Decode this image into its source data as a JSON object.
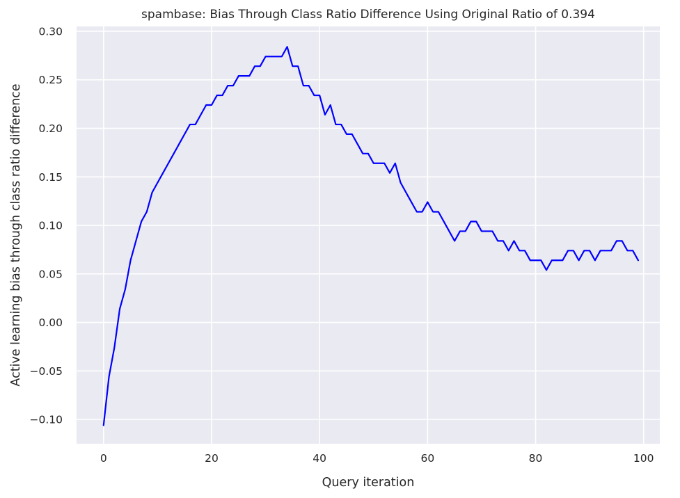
{
  "chart_data": {
    "type": "line",
    "title": "spambase: Bias Through Class Ratio Difference Using Original Ratio of 0.394",
    "xlabel": "Query iteration",
    "ylabel": "Active learning bias through class ratio difference",
    "xlim": [
      -5,
      103
    ],
    "ylim": [
      -0.125,
      0.305
    ],
    "xticks": [
      0,
      20,
      40,
      60,
      80,
      100
    ],
    "xtick_labels": [
      "0",
      "20",
      "40",
      "60",
      "80",
      "100"
    ],
    "yticks": [
      -0.1,
      -0.05,
      0.0,
      0.05,
      0.1,
      0.15,
      0.2,
      0.25,
      0.3
    ],
    "ytick_labels": [
      "−0.10",
      "−0.05",
      "0.00",
      "0.05",
      "0.10",
      "0.15",
      "0.20",
      "0.25",
      "0.30"
    ],
    "grid": true,
    "background_color": "#eaeaf2",
    "grid_color": "#ffffff",
    "series": [
      {
        "color": "#0000ff",
        "x": [
          0,
          1,
          2,
          3,
          4,
          5,
          6,
          7,
          8,
          9,
          10,
          11,
          12,
          13,
          14,
          15,
          16,
          17,
          18,
          19,
          20,
          21,
          22,
          23,
          24,
          25,
          26,
          27,
          28,
          29,
          30,
          31,
          32,
          33,
          34,
          35,
          36,
          37,
          38,
          39,
          40,
          41,
          42,
          43,
          44,
          45,
          46,
          47,
          48,
          49,
          50,
          51,
          52,
          53,
          54,
          55,
          56,
          57,
          58,
          59,
          60,
          61,
          62,
          63,
          64,
          65,
          66,
          67,
          68,
          69,
          70,
          71,
          72,
          73,
          74,
          75,
          76,
          77,
          78,
          79,
          80,
          81,
          82,
          83,
          84,
          85,
          86,
          87,
          88,
          89,
          90,
          91,
          92,
          93,
          94,
          95,
          96,
          97,
          98,
          99
        ],
        "y": [
          -0.106,
          -0.056,
          -0.026,
          0.014,
          0.034,
          0.064,
          0.084,
          0.104,
          0.114,
          0.134,
          0.144,
          0.154,
          0.164,
          0.174,
          0.184,
          0.194,
          0.204,
          0.204,
          0.214,
          0.224,
          0.224,
          0.234,
          0.234,
          0.244,
          0.244,
          0.254,
          0.254,
          0.254,
          0.264,
          0.264,
          0.274,
          0.274,
          0.274,
          0.274,
          0.284,
          0.264,
          0.264,
          0.244,
          0.244,
          0.234,
          0.234,
          0.214,
          0.224,
          0.204,
          0.204,
          0.194,
          0.194,
          0.184,
          0.174,
          0.174,
          0.164,
          0.164,
          0.164,
          0.154,
          0.164,
          0.144,
          0.134,
          0.124,
          0.114,
          0.114,
          0.124,
          0.114,
          0.114,
          0.104,
          0.094,
          0.084,
          0.094,
          0.094,
          0.104,
          0.104,
          0.094,
          0.094,
          0.094,
          0.084,
          0.084,
          0.074,
          0.084,
          0.074,
          0.074,
          0.064,
          0.064,
          0.064,
          0.054,
          0.064,
          0.064,
          0.064,
          0.074,
          0.074,
          0.064,
          0.074,
          0.074,
          0.064,
          0.074,
          0.074,
          0.074,
          0.084,
          0.084,
          0.074,
          0.074,
          0.064
        ]
      }
    ]
  }
}
